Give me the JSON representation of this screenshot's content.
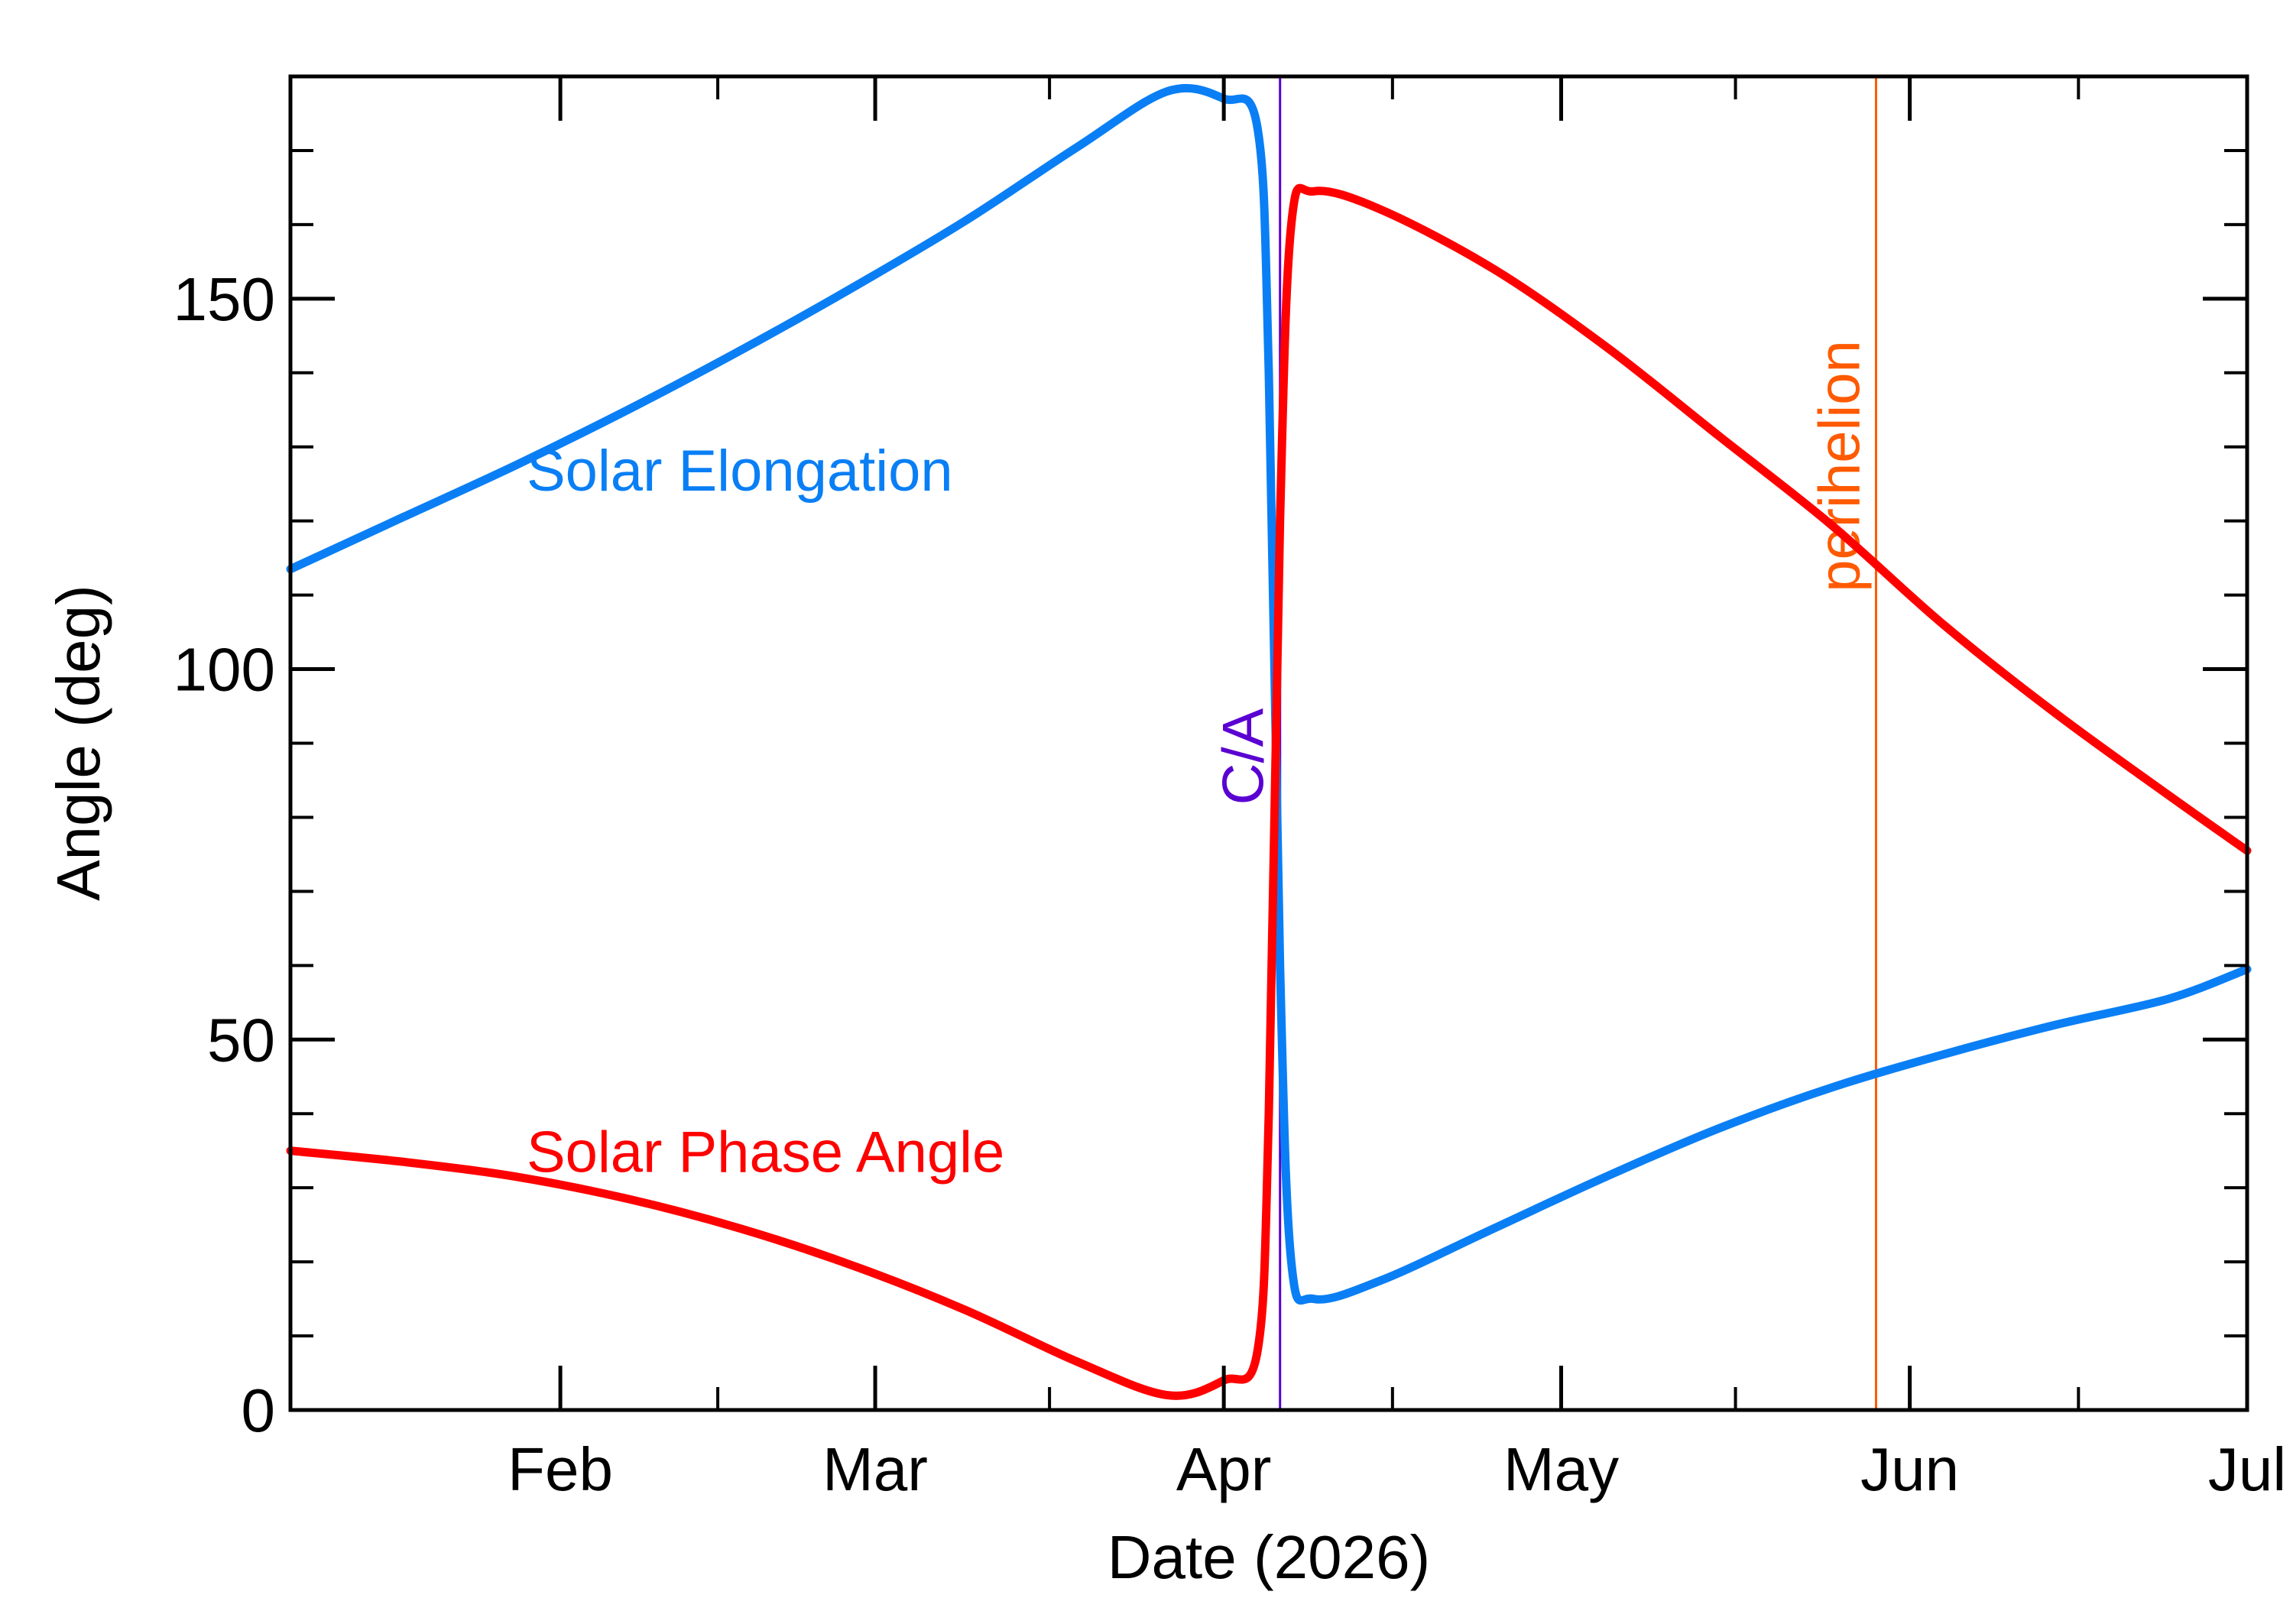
{
  "chart_data": {
    "type": "line",
    "title": "",
    "xlabel": "Date (2026)",
    "ylabel": "Angle (deg)",
    "x_type": "date",
    "xlim": [
      "2026-01-08",
      "2026-07-01"
    ],
    "ylim": [
      0,
      180
    ],
    "x_ticks": [
      {
        "label": "Feb",
        "x": "2026-02-01"
      },
      {
        "label": "Mar",
        "x": "2026-03-01"
      },
      {
        "label": "Apr",
        "x": "2026-04-01"
      },
      {
        "label": "May",
        "x": "2026-05-01"
      },
      {
        "label": "Jun",
        "x": "2026-06-01"
      },
      {
        "label": "Jul",
        "x": "2026-07-01"
      }
    ],
    "y_ticks": [
      0,
      50,
      100,
      150
    ],
    "grid": false,
    "legend": "inline labels",
    "vlines": [
      {
        "label": "C/A",
        "x": "2026-04-06",
        "color": "#5a00d2"
      },
      {
        "label": "perihelion",
        "x": "2026-05-29",
        "color": "#ff5a00"
      }
    ],
    "series": [
      {
        "name": "Solar Elongation",
        "color": "#0a7ff5",
        "label_at": [
          "2026-01-29",
          127
        ],
        "points": [
          [
            "2026-01-08",
            113.5
          ],
          [
            "2026-01-18",
            120.5
          ],
          [
            "2026-01-28",
            127.5
          ],
          [
            "2026-02-07",
            135
          ],
          [
            "2026-02-17",
            143
          ],
          [
            "2026-02-27",
            151.5
          ],
          [
            "2026-03-09",
            160.5
          ],
          [
            "2026-03-19",
            170.5
          ],
          [
            "2026-03-27",
            178
          ],
          [
            "2026-04-01",
            177
          ],
          [
            "2026-04-04",
            173
          ],
          [
            "2026-04-05",
            140
          ],
          [
            "2026-04-06",
            60
          ],
          [
            "2026-04-07",
            20
          ],
          [
            "2026-04-09",
            15
          ],
          [
            "2026-04-15",
            17.5
          ],
          [
            "2026-04-25",
            24.5
          ],
          [
            "2026-05-05",
            31.5
          ],
          [
            "2026-05-15",
            38
          ],
          [
            "2026-05-25",
            43.5
          ],
          [
            "2026-06-04",
            48
          ],
          [
            "2026-06-14",
            52
          ],
          [
            "2026-06-24",
            55.5
          ],
          [
            "2026-07-01",
            59.5
          ]
        ]
      },
      {
        "name": "Solar Phase Angle",
        "color": "#ff0000",
        "label_at": [
          "2026-01-29",
          35
        ],
        "points": [
          [
            "2026-01-08",
            35
          ],
          [
            "2026-01-18",
            33.5
          ],
          [
            "2026-01-28",
            31.5
          ],
          [
            "2026-02-07",
            28.5
          ],
          [
            "2026-02-17",
            24.5
          ],
          [
            "2026-02-27",
            19.5
          ],
          [
            "2026-03-09",
            13.5
          ],
          [
            "2026-03-19",
            6.5
          ],
          [
            "2026-03-27",
            2
          ],
          [
            "2026-04-01",
            4
          ],
          [
            "2026-04-04",
            8
          ],
          [
            "2026-04-05",
            40
          ],
          [
            "2026-04-06",
            120
          ],
          [
            "2026-04-07",
            160
          ],
          [
            "2026-04-09",
            164.5
          ],
          [
            "2026-04-15",
            162
          ],
          [
            "2026-04-25",
            154
          ],
          [
            "2026-05-05",
            143.5
          ],
          [
            "2026-05-15",
            131.5
          ],
          [
            "2026-05-25",
            119.5
          ],
          [
            "2026-06-04",
            106
          ],
          [
            "2026-06-14",
            94
          ],
          [
            "2026-06-24",
            83
          ],
          [
            "2026-07-01",
            75.5
          ]
        ]
      }
    ]
  }
}
